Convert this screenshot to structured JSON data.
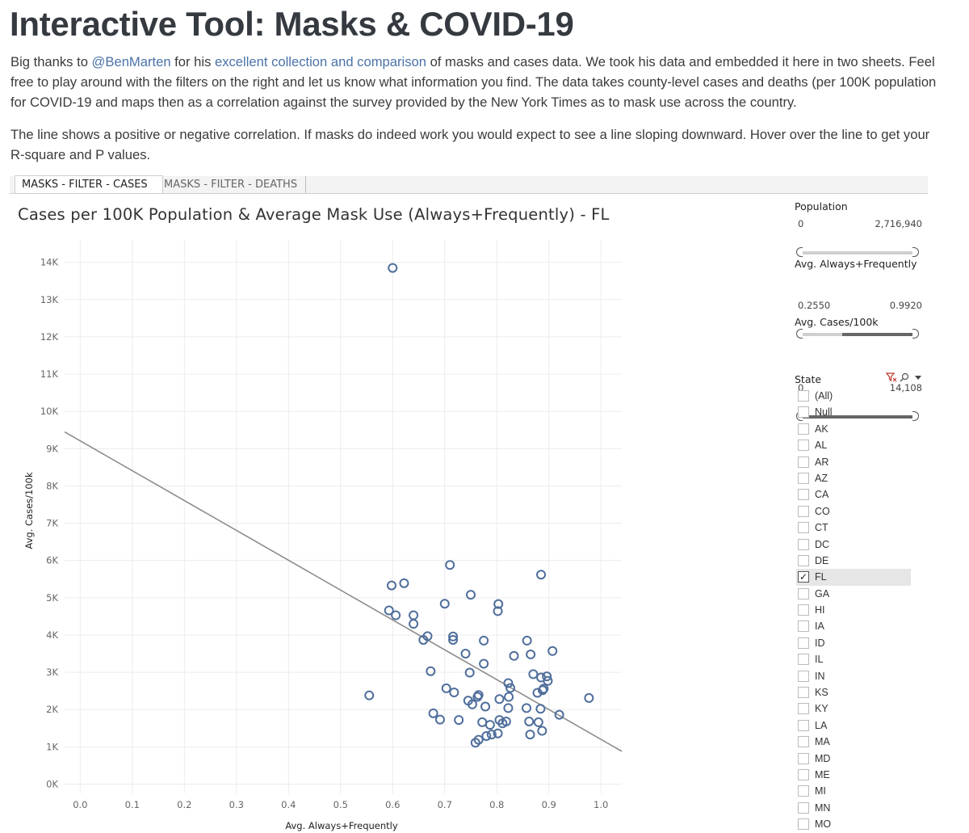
{
  "page": {
    "title": "Interactive Tool: Masks & COVID-19",
    "intro": {
      "p1_before": "Big thanks to ",
      "p1_link1": "@BenMarten",
      "p1_mid": " for his ",
      "p1_link2": "excellent collection and comparison",
      "p1_after": " of masks and cases data. We took his data and embedded it here in two sheets. Feel free to play around with the filters on the right and let us know what information you find. The data takes county-level cases and deaths (per 100K population for COVID-19 and maps then as a correlation against the survey provided by the New York Times as to mask use across the country.",
      "p2": "The line shows a positive or negative correlation. If masks do indeed work you would expect to see a line sloping downward. Hover over the line to get your R-square and P values."
    },
    "link_color": "#4a72a8"
  },
  "tabs": [
    {
      "label": "MASKS - FILTER - CASES",
      "active": true
    },
    {
      "label": "MASKS - FILTER - DEATHS",
      "active": false
    }
  ],
  "filters": {
    "population": {
      "label": "Population",
      "min": "0",
      "max": "2,716,940",
      "sel_lo": 0,
      "sel_hi": 1
    },
    "mask": {
      "label": "Avg. Always+Frequently",
      "min": "0.2550",
      "max": "0.9920",
      "sel_lo": 0.37,
      "sel_hi": 1
    },
    "cases": {
      "label": "Avg. Cases/100k",
      "min": "0",
      "max": "14,108",
      "sel_lo": 0,
      "sel_hi": 1
    },
    "state": {
      "label": "State",
      "icons": [
        "clear-filter-icon",
        "search-icon",
        "dropdown-arrow-icon"
      ],
      "items": [
        {
          "label": "(All)",
          "checked": false
        },
        {
          "label": "Null",
          "checked": false
        },
        {
          "label": "AK",
          "checked": false
        },
        {
          "label": "AL",
          "checked": false
        },
        {
          "label": "AR",
          "checked": false
        },
        {
          "label": "AZ",
          "checked": false
        },
        {
          "label": "CA",
          "checked": false
        },
        {
          "label": "CO",
          "checked": false
        },
        {
          "label": "CT",
          "checked": false
        },
        {
          "label": "DC",
          "checked": false
        },
        {
          "label": "DE",
          "checked": false
        },
        {
          "label": "FL",
          "checked": true
        },
        {
          "label": "GA",
          "checked": false
        },
        {
          "label": "HI",
          "checked": false
        },
        {
          "label": "IA",
          "checked": false
        },
        {
          "label": "ID",
          "checked": false
        },
        {
          "label": "IL",
          "checked": false
        },
        {
          "label": "IN",
          "checked": false
        },
        {
          "label": "KS",
          "checked": false
        },
        {
          "label": "KY",
          "checked": false
        },
        {
          "label": "LA",
          "checked": false
        },
        {
          "label": "MA",
          "checked": false
        },
        {
          "label": "MD",
          "checked": false
        },
        {
          "label": "ME",
          "checked": false
        },
        {
          "label": "MI",
          "checked": false
        },
        {
          "label": "MN",
          "checked": false
        },
        {
          "label": "MO",
          "checked": false
        }
      ]
    }
  },
  "colors": {
    "points": "#4f6e9c",
    "trend": "#8c8c8c",
    "checkmark": "#222",
    "filter_icon": "#c0392b"
  },
  "chart_data": {
    "type": "scatter",
    "title": "Cases per 100K Population & Average Mask Use (Always+Frequently) - FL",
    "xlabel": "Avg. Always+Frequently",
    "ylabel": "Avg. Cases/100k",
    "xlim": [
      -0.03,
      1.04
    ],
    "ylim": [
      -250,
      14600
    ],
    "xticks": [
      0.0,
      0.1,
      0.2,
      0.3,
      0.4,
      0.5,
      0.6,
      0.7,
      0.8,
      0.9,
      1.0
    ],
    "xtick_labels": [
      "0.0",
      "0.1",
      "0.2",
      "0.3",
      "0.4",
      "0.5",
      "0.6",
      "0.7",
      "0.8",
      "0.9",
      "1.0"
    ],
    "yticks": [
      0,
      1000,
      2000,
      3000,
      4000,
      5000,
      6000,
      7000,
      8000,
      9000,
      10000,
      11000,
      12000,
      13000,
      14000
    ],
    "ytick_labels": [
      "0K",
      "1K",
      "2K",
      "3K",
      "4K",
      "5K",
      "6K",
      "7K",
      "8K",
      "9K",
      "10K",
      "11K",
      "12K",
      "13K",
      "14K"
    ],
    "grid": true,
    "trend_line": {
      "x": [
        -0.03,
        1.04
      ],
      "y": [
        9450,
        880
      ]
    },
    "points": [
      {
        "x": 0.6,
        "y": 13850
      },
      {
        "x": 0.71,
        "y": 5880
      },
      {
        "x": 0.885,
        "y": 5620
      },
      {
        "x": 0.598,
        "y": 5330
      },
      {
        "x": 0.622,
        "y": 5390
      },
      {
        "x": 0.75,
        "y": 5080
      },
      {
        "x": 0.7,
        "y": 4840
      },
      {
        "x": 0.803,
        "y": 4830
      },
      {
        "x": 0.593,
        "y": 4660
      },
      {
        "x": 0.802,
        "y": 4640
      },
      {
        "x": 0.606,
        "y": 4530
      },
      {
        "x": 0.64,
        "y": 4530
      },
      {
        "x": 0.64,
        "y": 4300
      },
      {
        "x": 0.667,
        "y": 3970
      },
      {
        "x": 0.716,
        "y": 3960
      },
      {
        "x": 0.659,
        "y": 3870
      },
      {
        "x": 0.716,
        "y": 3870
      },
      {
        "x": 0.775,
        "y": 3850
      },
      {
        "x": 0.858,
        "y": 3850
      },
      {
        "x": 0.907,
        "y": 3570
      },
      {
        "x": 0.74,
        "y": 3500
      },
      {
        "x": 0.865,
        "y": 3480
      },
      {
        "x": 0.833,
        "y": 3440
      },
      {
        "x": 0.775,
        "y": 3230
      },
      {
        "x": 0.673,
        "y": 3030
      },
      {
        "x": 0.748,
        "y": 2990
      },
      {
        "x": 0.87,
        "y": 2950
      },
      {
        "x": 0.896,
        "y": 2890
      },
      {
        "x": 0.885,
        "y": 2860
      },
      {
        "x": 0.898,
        "y": 2770
      },
      {
        "x": 0.822,
        "y": 2710
      },
      {
        "x": 0.826,
        "y": 2580
      },
      {
        "x": 0.89,
        "y": 2560
      },
      {
        "x": 0.888,
        "y": 2520
      },
      {
        "x": 0.703,
        "y": 2570
      },
      {
        "x": 0.718,
        "y": 2460
      },
      {
        "x": 0.878,
        "y": 2450
      },
      {
        "x": 0.765,
        "y": 2390
      },
      {
        "x": 0.763,
        "y": 2340
      },
      {
        "x": 0.823,
        "y": 2340
      },
      {
        "x": 0.977,
        "y": 2310
      },
      {
        "x": 0.555,
        "y": 2380
      },
      {
        "x": 0.745,
        "y": 2240
      },
      {
        "x": 0.805,
        "y": 2280
      },
      {
        "x": 0.753,
        "y": 2140
      },
      {
        "x": 0.778,
        "y": 2080
      },
      {
        "x": 0.822,
        "y": 2040
      },
      {
        "x": 0.857,
        "y": 2040
      },
      {
        "x": 0.884,
        "y": 2020
      },
      {
        "x": 0.92,
        "y": 1860
      },
      {
        "x": 0.678,
        "y": 1900
      },
      {
        "x": 0.691,
        "y": 1730
      },
      {
        "x": 0.727,
        "y": 1720
      },
      {
        "x": 0.805,
        "y": 1720
      },
      {
        "x": 0.772,
        "y": 1660
      },
      {
        "x": 0.818,
        "y": 1680
      },
      {
        "x": 0.811,
        "y": 1630
      },
      {
        "x": 0.862,
        "y": 1680
      },
      {
        "x": 0.88,
        "y": 1660
      },
      {
        "x": 0.787,
        "y": 1590
      },
      {
        "x": 0.802,
        "y": 1360
      },
      {
        "x": 0.79,
        "y": 1330
      },
      {
        "x": 0.78,
        "y": 1290
      },
      {
        "x": 0.864,
        "y": 1330
      },
      {
        "x": 0.887,
        "y": 1430
      },
      {
        "x": 0.765,
        "y": 1190
      },
      {
        "x": 0.759,
        "y": 1110
      }
    ]
  }
}
